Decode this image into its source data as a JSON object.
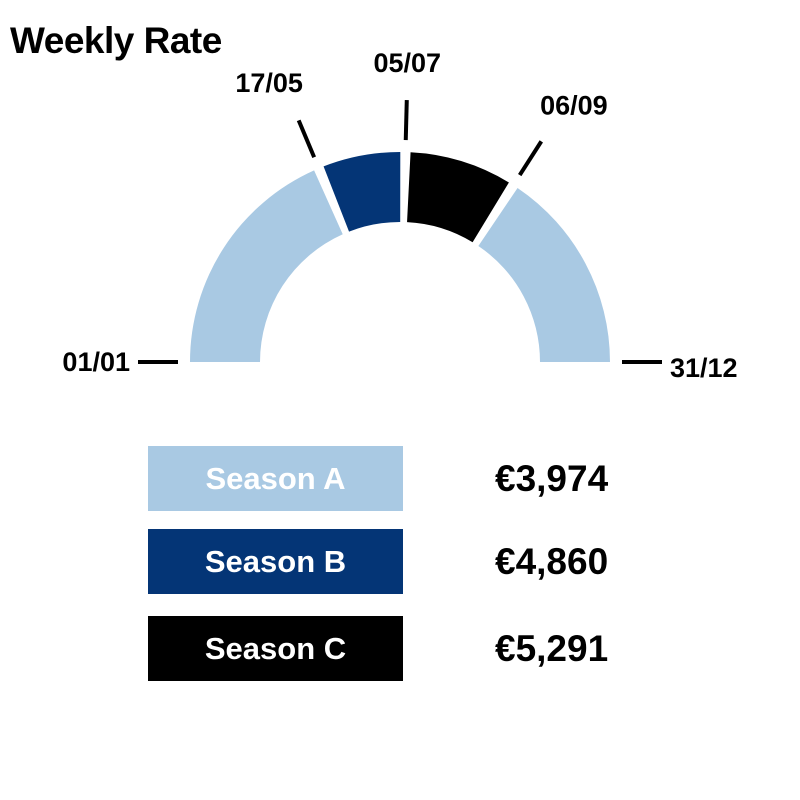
{
  "title": "Weekly Rate",
  "chart_data": {
    "type": "pie",
    "subtype": "half-donut",
    "period_boundaries": [
      "01/01",
      "17/05",
      "05/07",
      "06/09",
      "31/12"
    ],
    "segments": [
      {
        "season": "Season A",
        "start": "01/01",
        "end": "17/05",
        "color": "#a9c9e3"
      },
      {
        "season": "Season B",
        "start": "17/05",
        "end": "05/07",
        "color": "#043576"
      },
      {
        "season": "Season C",
        "start": "05/07",
        "end": "06/09",
        "color": "#000000"
      },
      {
        "season": "Season A",
        "start": "06/09",
        "end": "31/12",
        "color": "#a9c9e3"
      }
    ],
    "legend": [
      {
        "name": "Season A",
        "value": "€3,974",
        "color": "#a9c9e3"
      },
      {
        "name": "Season B",
        "value": "€4,860",
        "color": "#043576"
      },
      {
        "name": "Season C",
        "value": "€5,291",
        "color": "#000000"
      }
    ]
  }
}
